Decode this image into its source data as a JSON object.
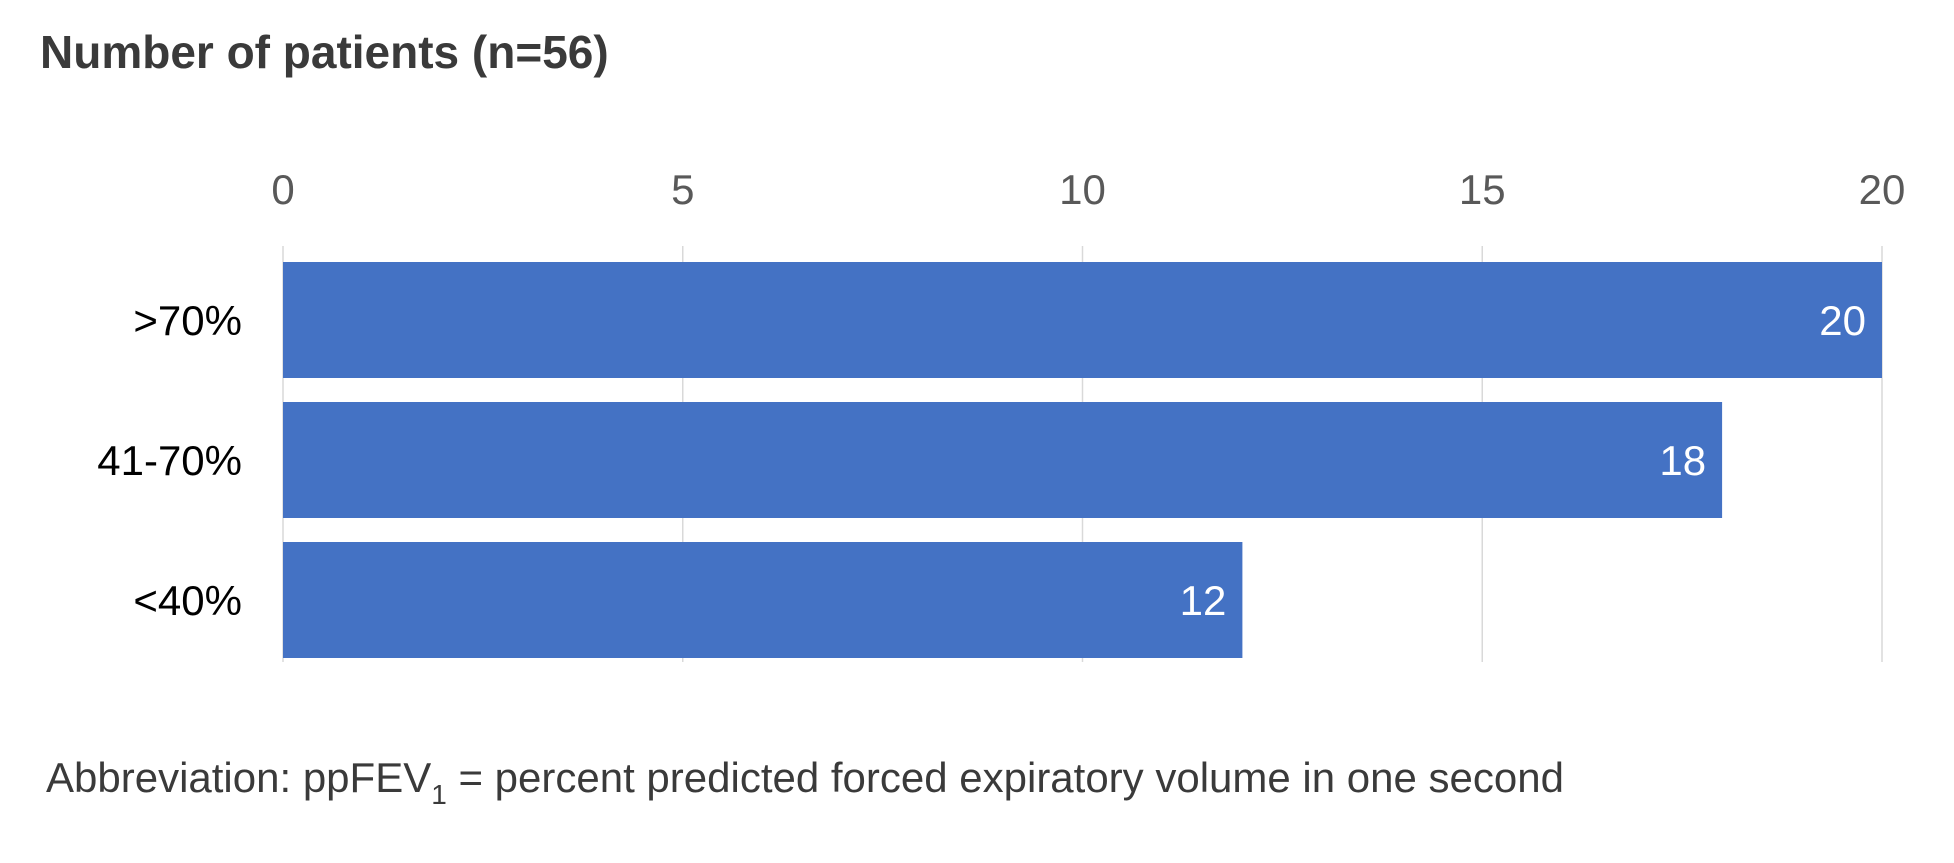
{
  "chart_data": {
    "type": "bar",
    "orientation": "horizontal",
    "title": "Number of patients (n=56)",
    "xlabel": "",
    "ylabel": "",
    "categories": [
      ">70%",
      "41-70%",
      "<40%"
    ],
    "values": [
      20,
      18,
      12
    ],
    "data_labels": [
      "20",
      "18",
      "12"
    ],
    "xlim": [
      0,
      20
    ],
    "x_ticks": [
      0,
      5,
      10,
      15,
      20
    ],
    "x_tick_labels": [
      "0",
      "5",
      "10",
      "15",
      "20"
    ],
    "x_axis_position": "top",
    "grid": true,
    "legend": "none",
    "bar_color": "#4472C4"
  },
  "footnote": {
    "prefix": "Abbreviation: ppFEV",
    "subscript": "1",
    "suffix": " = percent predicted forced expiratory volume in one second"
  }
}
